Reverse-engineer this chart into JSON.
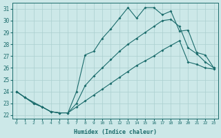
{
  "xlabel": "Humidex (Indice chaleur)",
  "bg_color": "#cce8e8",
  "grid_color": "#aacfcf",
  "line_color": "#1a6b6b",
  "xlim": [
    -0.5,
    23.5
  ],
  "ylim": [
    21.7,
    31.5
  ],
  "xticks": [
    0,
    1,
    2,
    3,
    4,
    5,
    6,
    7,
    8,
    9,
    10,
    11,
    12,
    13,
    14,
    15,
    16,
    17,
    18,
    19,
    20,
    21,
    22,
    23
  ],
  "yticks": [
    22,
    23,
    24,
    25,
    26,
    27,
    28,
    29,
    30,
    31
  ],
  "curve1_x": [
    0,
    1,
    2,
    3,
    4,
    5,
    6,
    7,
    8,
    9,
    10,
    11,
    12,
    13,
    14,
    15,
    16,
    17,
    18,
    19,
    20,
    21,
    22,
    23
  ],
  "curve1_y": [
    24.0,
    23.5,
    23.0,
    22.7,
    22.3,
    22.2,
    22.2,
    24.0,
    27.1,
    27.4,
    28.5,
    29.3,
    30.2,
    31.1,
    30.2,
    31.1,
    31.1,
    30.5,
    30.8,
    29.1,
    29.2,
    27.3,
    27.1,
    26.0
  ],
  "curve2_x": [
    0,
    1,
    3,
    4,
    5,
    6,
    7,
    8,
    9,
    10,
    11,
    12,
    13,
    14,
    15,
    16,
    17,
    18,
    19,
    20,
    21,
    22,
    23
  ],
  "curve2_y": [
    24.0,
    23.5,
    22.7,
    22.3,
    22.2,
    22.2,
    23.0,
    24.5,
    25.3,
    26.0,
    26.7,
    27.4,
    28.0,
    28.5,
    29.0,
    29.5,
    30.0,
    30.1,
    29.5,
    27.7,
    27.2,
    26.5,
    26.0
  ],
  "curve3_x": [
    0,
    1,
    2,
    3,
    4,
    5,
    6,
    7,
    8,
    9,
    10,
    11,
    12,
    13,
    14,
    15,
    16,
    17,
    18,
    19,
    20,
    21,
    22,
    23
  ],
  "curve3_y": [
    24.0,
    23.5,
    23.0,
    22.7,
    22.3,
    22.2,
    22.2,
    22.7,
    23.2,
    23.7,
    24.2,
    24.7,
    25.2,
    25.7,
    26.2,
    26.6,
    27.0,
    27.5,
    27.9,
    28.3,
    26.5,
    26.3,
    26.0,
    25.9
  ]
}
